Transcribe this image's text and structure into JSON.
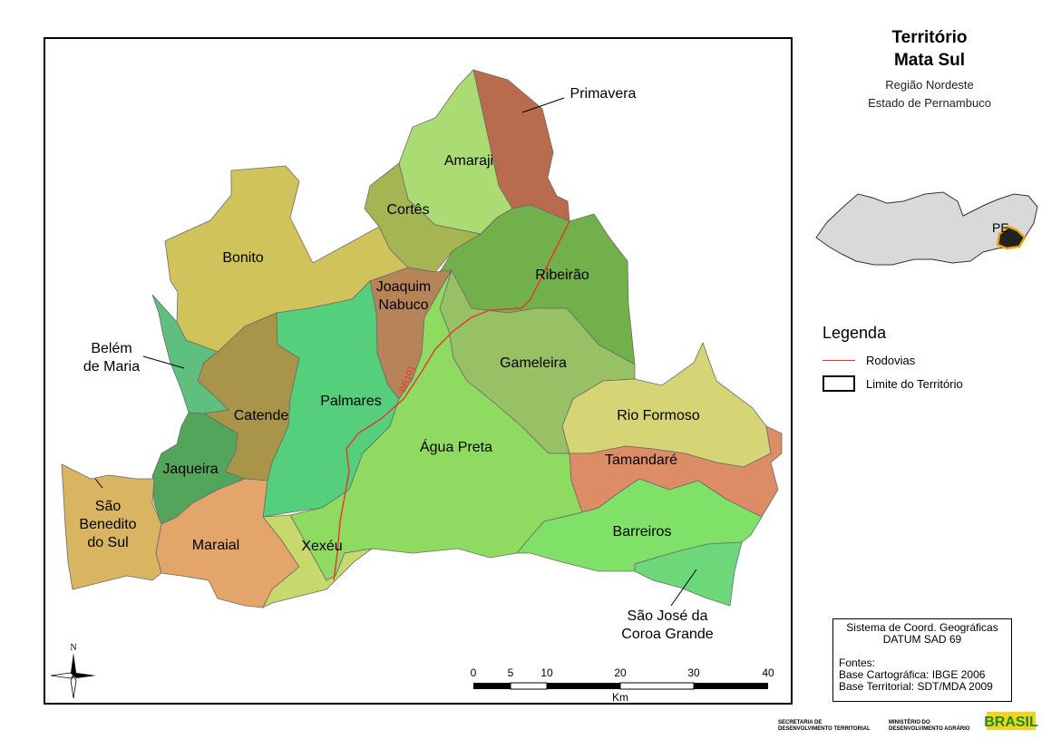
{
  "title": {
    "line1": "Território",
    "line2": "Mata Sul"
  },
  "subtitle": {
    "line1": "Região Nordeste",
    "line2": "Estado de Pernambuco"
  },
  "inset": {
    "label": "PE"
  },
  "legend": {
    "title": "Legenda",
    "items": [
      {
        "label": "Rodovias",
        "color": "#e8352a"
      },
      {
        "label": "Limite do Território",
        "color": "#000000"
      }
    ]
  },
  "info": {
    "line1": "Sistema de Coord. Geográficas",
    "line2": "DATUM SAD 69",
    "line3": "Fontes:",
    "line4": "Base Cartográfica: IBGE 2006",
    "line5": "Base Territorial: SDT/MDA 2009"
  },
  "scale": {
    "ticks": [
      "0",
      "5",
      "10",
      "20",
      "30",
      "40"
    ],
    "unit": "Km"
  },
  "north": {
    "label": "N"
  },
  "road": {
    "label": "BR101"
  },
  "footer": {
    "sdt_line1": "SECRETARIA DE",
    "sdt_line2": "DESENVOLVIMENTO TERRITORIAL",
    "mda_line1": "MINISTÉRIO DO",
    "mda_line2": "DESENVOLVIMENTO AGRÁRIO",
    "brasil": "BRASIL"
  },
  "municipalities": [
    {
      "id": "primavera",
      "lines": [
        "Primavera"
      ],
      "color": "#b96b4e"
    },
    {
      "id": "amaraji",
      "lines": [
        "Amaraji"
      ],
      "color": "#abdc74"
    },
    {
      "id": "cortes",
      "lines": [
        "Cortês"
      ],
      "color": "#a6b551"
    },
    {
      "id": "bonito",
      "lines": [
        "Bonito"
      ],
      "color": "#d1c35c"
    },
    {
      "id": "ribeirao",
      "lines": [
        "Ribeirão"
      ],
      "color": "#71b04b"
    },
    {
      "id": "joaquim-nabuco",
      "lines": [
        "Joaquim",
        "Nabuco"
      ],
      "color": "#b78459"
    },
    {
      "id": "belem-de-maria",
      "lines": [
        "Belém",
        "de Maria"
      ],
      "color": "#5ebf7f"
    },
    {
      "id": "catende",
      "lines": [
        "Catende"
      ],
      "color": "#a89549"
    },
    {
      "id": "palmares",
      "lines": [
        "Palmares"
      ],
      "color": "#56cf7d"
    },
    {
      "id": "gameleira",
      "lines": [
        "Gameleira"
      ],
      "color": "#98c165"
    },
    {
      "id": "agua-preta",
      "lines": [
        "Água Preta"
      ],
      "color": "#8fdb62"
    },
    {
      "id": "rio-formoso",
      "lines": [
        "Rio Formoso"
      ],
      "color": "#d5d575"
    },
    {
      "id": "tamandare",
      "lines": [
        "Tamandaré"
      ],
      "color": "#dc8d65"
    },
    {
      "id": "jaqueira",
      "lines": [
        "Jaqueira"
      ],
      "color": "#54a55c"
    },
    {
      "id": "sao-benedito-do-sul",
      "lines": [
        "São",
        "Benedito",
        "do Sul"
      ],
      "color": "#d9b461"
    },
    {
      "id": "maraial",
      "lines": [
        "Maraial"
      ],
      "color": "#e3a56a"
    },
    {
      "id": "xexeu",
      "lines": [
        "Xexéu"
      ],
      "color": "#c7d96d"
    },
    {
      "id": "barreiros",
      "lines": [
        "Barreiros"
      ],
      "color": "#7fe167"
    },
    {
      "id": "sao-jose-da-coroa-grande",
      "lines": [
        "São José da",
        "Coroa Grande"
      ],
      "color": "#6cd879"
    }
  ]
}
